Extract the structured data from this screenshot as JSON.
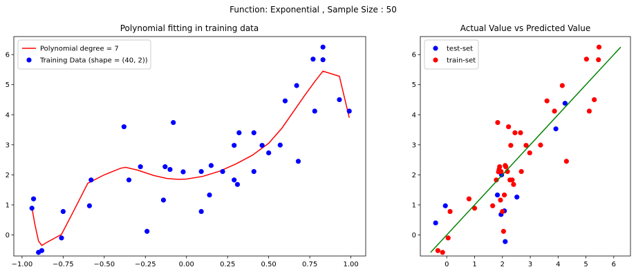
{
  "figure": {
    "suptitle": "Function: Exponential , Sample Size : 50"
  },
  "colors": {
    "fit_line": "#ff0000",
    "train_points": "#0000ff",
    "test_points": "#0000ff",
    "train_set": "#ff0000",
    "ideal_line": "#008000"
  },
  "chart_data": [
    {
      "type": "scatter",
      "title": "Polynomial fitting in training data",
      "xlabel": "",
      "ylabel": "",
      "xlim": [
        -1.05,
        1.09
      ],
      "ylim": [
        -0.7,
        6.6
      ],
      "xticks": [
        -1.0,
        -0.75,
        -0.5,
        -0.25,
        0.0,
        0.25,
        0.5,
        0.75,
        1.0
      ],
      "xtick_labels": [
        "−1.00",
        "−0.75",
        "−0.50",
        "−0.25",
        "0.00",
        "0.25",
        "0.50",
        "0.75",
        "1.00"
      ],
      "yticks": [
        0,
        1,
        2,
        3,
        4,
        5,
        6
      ],
      "ytick_labels": [
        "0",
        "1",
        "2",
        "3",
        "4",
        "5",
        "6"
      ],
      "legend_position": "upper-left",
      "series": [
        {
          "name": "Polynomial degree = 7",
          "kind": "line",
          "color": "#ff0000",
          "x": [
            -0.94,
            -0.92,
            -0.9,
            -0.88,
            -0.85,
            -0.8,
            -0.76,
            -0.7,
            -0.6,
            -0.5,
            -0.4,
            -0.37,
            -0.3,
            -0.2,
            -0.12,
            -0.05,
            0.0,
            0.1,
            0.2,
            0.3,
            0.4,
            0.5,
            0.58,
            0.65,
            0.72,
            0.78,
            0.83,
            0.93,
            0.99
          ],
          "y": [
            0.9,
            0.3,
            -0.2,
            -0.35,
            -0.25,
            -0.1,
            0.02,
            0.65,
            1.72,
            2.0,
            2.22,
            2.25,
            2.16,
            1.98,
            1.88,
            1.85,
            1.86,
            1.95,
            2.12,
            2.36,
            2.65,
            3.05,
            3.55,
            4.1,
            4.65,
            5.1,
            5.45,
            5.28,
            3.9
          ]
        },
        {
          "name": "Training Data (shape = (40, 2))",
          "kind": "scatter",
          "color": "#0000ff",
          "x": [
            -0.94,
            -0.93,
            -0.9,
            -0.88,
            -0.76,
            -0.75,
            -0.59,
            -0.58,
            -0.38,
            -0.35,
            -0.28,
            -0.24,
            -0.14,
            -0.13,
            -0.1,
            -0.08,
            -0.02,
            0.09,
            0.09,
            0.14,
            0.15,
            0.22,
            0.29,
            0.29,
            0.31,
            0.32,
            0.41,
            0.41,
            0.46,
            0.5,
            0.57,
            0.6,
            0.67,
            0.68,
            0.77,
            0.78,
            0.83,
            0.83,
            0.93,
            0.99
          ],
          "y": [
            0.89,
            1.2,
            -0.58,
            -0.52,
            -0.1,
            0.78,
            0.97,
            1.83,
            3.6,
            1.83,
            2.27,
            0.12,
            1.16,
            2.27,
            2.18,
            3.74,
            2.1,
            0.78,
            2.11,
            1.33,
            2.31,
            2.11,
            2.98,
            1.83,
            1.68,
            3.4,
            3.4,
            2.11,
            2.98,
            2.73,
            2.99,
            4.46,
            4.97,
            2.45,
            5.85,
            4.12,
            5.83,
            6.25,
            4.5,
            4.12
          ]
        }
      ]
    },
    {
      "type": "scatter",
      "title": "Actual Value vs Predicted Value",
      "xlabel": "",
      "ylabel": "",
      "xlim": [
        -0.95,
        6.6
      ],
      "ylim": [
        -0.7,
        6.6
      ],
      "xticks": [
        0,
        1,
        2,
        3,
        4,
        5,
        6
      ],
      "xtick_labels": [
        "0",
        "1",
        "2",
        "3",
        "4",
        "5",
        "6"
      ],
      "yticks": [
        0,
        1,
        2,
        3,
        4,
        5,
        6
      ],
      "ytick_labels": [
        "0",
        "1",
        "2",
        "3",
        "4",
        "5",
        "6"
      ],
      "legend_position": "upper-left",
      "series": [
        {
          "name": "test-set",
          "kind": "scatter",
          "color": "#0000ff",
          "x": [
            -0.4,
            -0.05,
            1.82,
            1.95,
            1.97,
            2.07,
            2.1,
            2.52,
            3.92,
            4.25
          ],
          "y": [
            0.4,
            0.97,
            1.33,
            0.68,
            2.0,
            0.8,
            -0.22,
            1.26,
            3.53,
            4.38
          ]
        },
        {
          "name": "train-set",
          "kind": "scatter",
          "color": "#ff0000",
          "x": [
            -0.32,
            -0.15,
            0.05,
            0.12,
            0.8,
            1.0,
            1.65,
            1.78,
            1.83,
            1.86,
            1.88,
            1.9,
            1.93,
            1.95,
            2.0,
            2.04,
            2.07,
            2.1,
            2.12,
            2.18,
            2.22,
            2.27,
            2.3,
            2.35,
            2.4,
            2.45,
            2.65,
            2.68,
            2.85,
            2.98,
            3.37,
            3.6,
            3.87,
            4.15,
            4.3,
            5.02,
            5.12,
            5.3,
            5.45,
            5.47
          ],
          "y": [
            -0.52,
            -0.58,
            -0.1,
            0.78,
            1.2,
            0.89,
            0.97,
            1.83,
            3.74,
            2.1,
            2.18,
            2.27,
            1.16,
            2.11,
            0.78,
            0.12,
            1.33,
            2.31,
            2.27,
            2.11,
            3.6,
            1.83,
            2.98,
            1.83,
            1.68,
            3.4,
            3.4,
            2.11,
            2.98,
            2.73,
            2.99,
            4.46,
            4.12,
            4.97,
            2.45,
            5.85,
            4.12,
            4.5,
            5.83,
            6.25
          ]
        },
        {
          "name": "",
          "kind": "line",
          "color": "#008000",
          "x": [
            -0.58,
            6.25
          ],
          "y": [
            -0.58,
            6.25
          ]
        }
      ]
    }
  ]
}
